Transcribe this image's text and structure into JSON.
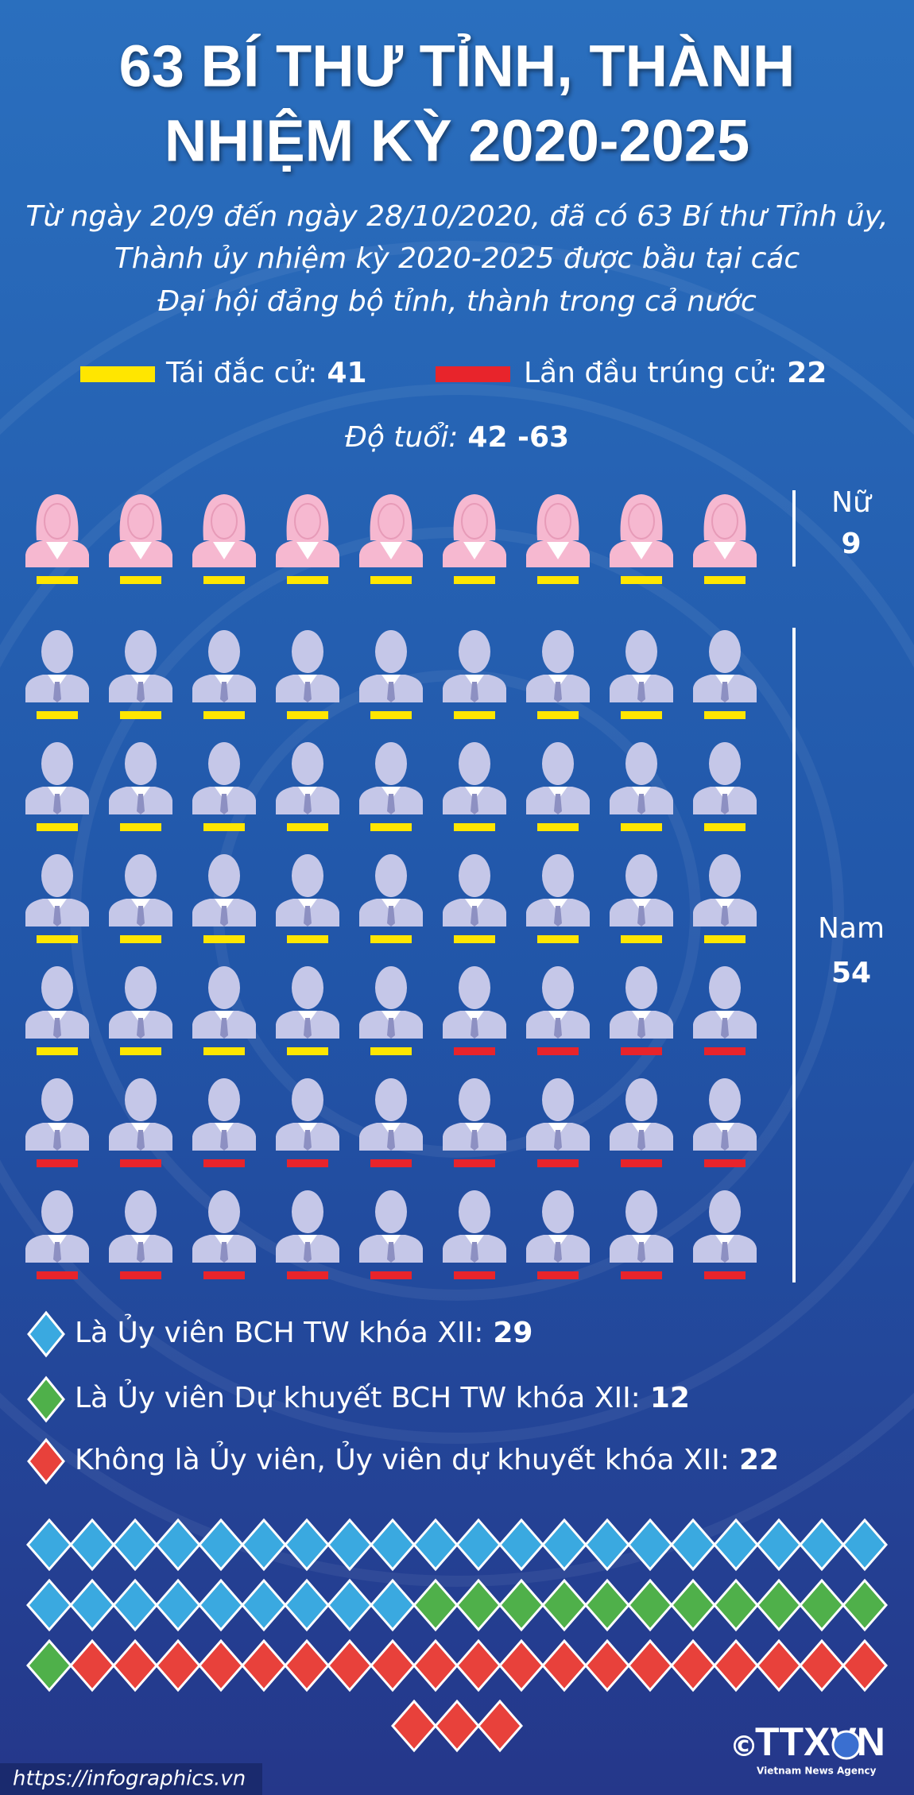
{
  "title_lines": [
    "63 BÍ THƯ TỈNH, THÀNH",
    "NHIỆM KỲ 2020-2025"
  ],
  "subtitle_lines": [
    "Từ ngày 20/9 đến ngày 28/10/2020, đã có 63 Bí thư Tỉnh ủy,",
    "Thành ủy nhiệm kỳ 2020-2025 được bầu tại các",
    "Đại hội đảng bộ tỉnh, thành trong cả nước"
  ],
  "election": [
    {
      "label": "Tái đắc cử:",
      "value": 41,
      "color": "#ffe600"
    },
    {
      "label": "Lần đầu trúng cử:",
      "value": 22,
      "color": "#e8242b"
    }
  ],
  "age": {
    "label": "Độ tuổi:",
    "value": "42 -63"
  },
  "gender": [
    {
      "label": "Nữ",
      "value": 9,
      "color": "#f6b8d0"
    },
    {
      "label": "Nam",
      "value": 54,
      "color": "#c5c7e8"
    }
  ],
  "membership": [
    {
      "label": "Là Ủy viên BCH TW khóa XII:",
      "value": 29,
      "color": "#3aa9e0"
    },
    {
      "label": "Là Ủy viên Dự khuyết BCH TW khóa XII:",
      "value": 12,
      "color": "#4fb04a"
    },
    {
      "label": "Không là Ủy viên, Ủy viên dự khuyết khóa XII:",
      "value": 22,
      "color": "#e8413b"
    }
  ],
  "footer": {
    "url": "https://infographics.vn",
    "copyright": "©",
    "agency": "TTXVN",
    "agency_sub": "Vietnam News Agency"
  }
}
